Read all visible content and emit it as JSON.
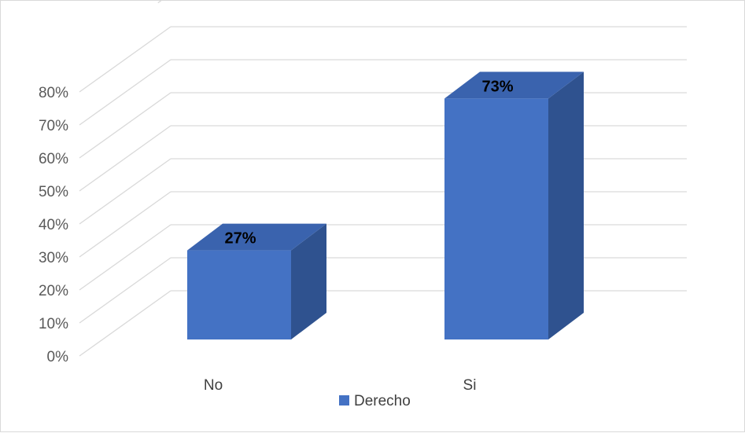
{
  "chart_data": {
    "type": "bar",
    "style": "3d-column",
    "categories": [
      "No",
      "Si"
    ],
    "series": [
      {
        "name": "Derecho",
        "values": [
          27,
          73
        ],
        "color": "#4472c4",
        "side_color": "#2f528f",
        "top_color": "#3a63ae"
      }
    ],
    "data_labels": [
      "27%",
      "73%"
    ],
    "y_tick_labels": [
      "0%",
      "10%",
      "20%",
      "30%",
      "40%",
      "50%",
      "60%",
      "70%",
      "80%"
    ],
    "ylim": [
      0,
      80
    ],
    "grid": true,
    "grid_color": "#d9d9d9",
    "legend_position": "bottom",
    "title": "",
    "xlabel": "",
    "ylabel": ""
  }
}
